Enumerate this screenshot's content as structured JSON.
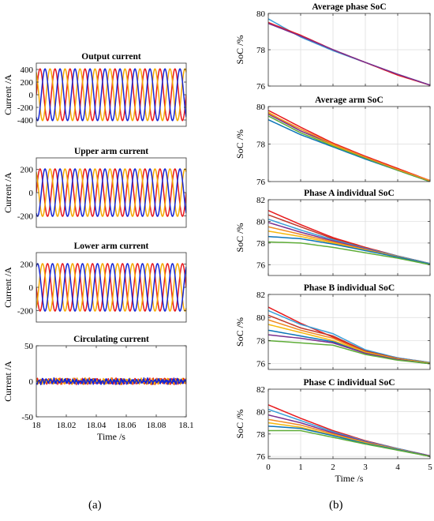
{
  "captions": {
    "a": "(a)",
    "b": "(b)"
  },
  "colors": {
    "phase_a": "#e8191c",
    "phase_b": "#f5a800",
    "phase_c": "#1524d4",
    "soc_palette": [
      "#e8191c",
      "#d8522a",
      "#7a2f8f",
      "#0b74b8",
      "#3a9fd8",
      "#f08a24",
      "#f5b80c",
      "#5fad38",
      "#c0392b"
    ]
  },
  "chart_data": [
    {
      "id": "output-current",
      "type": "line",
      "title": "Output current",
      "xlabel": "",
      "ylabel": "Current /A",
      "xlim": [
        18,
        18.1
      ],
      "ylim": [
        -500,
        500
      ],
      "yticks": [
        -400,
        -200,
        0,
        200,
        400
      ],
      "show_x_ticklabels": false,
      "grid": false,
      "legend": "none",
      "waveform": {
        "kind": "sine3",
        "amplitude": 410,
        "frequency_hz": 100,
        "offset": 0
      },
      "series": [
        {
          "color": "#e8191c",
          "phase_deg": 0
        },
        {
          "color": "#f5a800",
          "phase_deg": 120
        },
        {
          "color": "#1524d4",
          "phase_deg": 240
        }
      ]
    },
    {
      "id": "upper-arm-current",
      "type": "line",
      "title": "Upper arm current",
      "xlabel": "",
      "ylabel": "Current /A",
      "xlim": [
        18,
        18.1
      ],
      "ylim": [
        -300,
        300
      ],
      "yticks": [
        -200,
        0,
        200
      ],
      "show_x_ticklabels": false,
      "grid": false,
      "legend": "none",
      "waveform": {
        "kind": "sine3",
        "amplitude": 205,
        "frequency_hz": 100,
        "offset": 0
      },
      "series": [
        {
          "color": "#e8191c",
          "phase_deg": 0
        },
        {
          "color": "#f5a800",
          "phase_deg": 120
        },
        {
          "color": "#1524d4",
          "phase_deg": 240
        }
      ]
    },
    {
      "id": "lower-arm-current",
      "type": "line",
      "title": "Lower arm current",
      "xlabel": "",
      "ylabel": "Current /A",
      "xlim": [
        18,
        18.1
      ],
      "ylim": [
        -300,
        300
      ],
      "yticks": [
        -200,
        0,
        200
      ],
      "show_x_ticklabels": false,
      "grid": false,
      "legend": "none",
      "waveform": {
        "kind": "sine3",
        "amplitude": 205,
        "frequency_hz": 100,
        "offset": 0
      },
      "series": [
        {
          "color": "#e8191c",
          "phase_deg": 180
        },
        {
          "color": "#f5a800",
          "phase_deg": 300
        },
        {
          "color": "#1524d4",
          "phase_deg": 60
        }
      ]
    },
    {
      "id": "circulating-current",
      "type": "line",
      "title": "Circulating current",
      "xlabel": "Time /s",
      "ylabel": "Current /A",
      "xlim": [
        18,
        18.1
      ],
      "ylim": [
        -50,
        50
      ],
      "yticks": [
        -50,
        0,
        50
      ],
      "xticks": [
        18,
        18.02,
        18.04,
        18.06,
        18.08,
        18.1
      ],
      "show_x_ticklabels": true,
      "grid": false,
      "legend": "none",
      "waveform": {
        "kind": "noise",
        "amplitude": 4,
        "frequency_hz": 400,
        "offset": 0
      },
      "series": [
        {
          "color": "#e8191c",
          "phase_deg": 0
        },
        {
          "color": "#f5a800",
          "phase_deg": 100
        },
        {
          "color": "#1524d4",
          "phase_deg": 200
        }
      ]
    },
    {
      "id": "average-phase-soc",
      "type": "line",
      "title": "Average phase SoC",
      "xlabel": "",
      "ylabel": "SoC /%",
      "xlim": [
        0,
        5
      ],
      "ylim": [
        76,
        80
      ],
      "yticks": [
        76,
        78,
        80
      ],
      "xticks": [
        0,
        1,
        2,
        3,
        4,
        5
      ],
      "show_x_ticklabels": false,
      "grid": true,
      "legend": "none",
      "series": [
        {
          "color": "#3a9fd8",
          "x": [
            0,
            1,
            2,
            3,
            4,
            5
          ],
          "y": [
            79.7,
            78.7,
            77.95,
            77.3,
            76.65,
            76.05
          ]
        },
        {
          "color": "#e8191c",
          "x": [
            0,
            1,
            2,
            3,
            4,
            5
          ],
          "y": [
            79.5,
            78.8,
            78.0,
            77.3,
            76.6,
            76.05
          ]
        },
        {
          "color": "#7a2f8f",
          "x": [
            0,
            1,
            2,
            3,
            4,
            5
          ],
          "y": [
            79.45,
            78.75,
            78.0,
            77.3,
            76.65,
            76.05
          ]
        }
      ]
    },
    {
      "id": "average-arm-soc",
      "type": "line",
      "title": "Average arm SoC",
      "xlabel": "",
      "ylabel": "SoC /%",
      "xlim": [
        0,
        5
      ],
      "ylim": [
        76,
        80
      ],
      "yticks": [
        76,
        78,
        80
      ],
      "xticks": [
        0,
        1,
        2,
        3,
        4,
        5
      ],
      "show_x_ticklabels": false,
      "grid": true,
      "legend": "none",
      "series": [
        {
          "color": "#0b74b8",
          "x": [
            0,
            1,
            2,
            3,
            4,
            5
          ],
          "y": [
            79.3,
            78.5,
            77.85,
            77.2,
            76.6,
            76.0
          ]
        },
        {
          "color": "#5fad38",
          "x": [
            0,
            1,
            2,
            3,
            4,
            5
          ],
          "y": [
            79.5,
            78.6,
            77.9,
            77.25,
            76.6,
            76.0
          ]
        },
        {
          "color": "#f5b80c",
          "x": [
            0,
            1,
            2,
            3,
            4,
            5
          ],
          "y": [
            79.7,
            78.7,
            77.95,
            77.3,
            76.65,
            76.05
          ]
        },
        {
          "color": "#7a2f8f",
          "x": [
            0,
            1,
            2,
            3,
            4,
            5
          ],
          "y": [
            79.6,
            78.7,
            78.0,
            77.3,
            76.65,
            76.05
          ]
        },
        {
          "color": "#e8191c",
          "x": [
            0,
            1,
            2,
            3,
            4,
            5
          ],
          "y": [
            79.8,
            78.9,
            78.05,
            77.35,
            76.7,
            76.05
          ]
        },
        {
          "color": "#f08a24",
          "x": [
            0,
            1,
            2,
            3,
            4,
            5
          ],
          "y": [
            79.65,
            78.8,
            78.0,
            77.3,
            76.65,
            76.05
          ]
        }
      ]
    },
    {
      "id": "phase-a-individual-soc",
      "type": "line",
      "title": "Phase A individual SoC",
      "xlabel": "",
      "ylabel": "SoC /%",
      "xlim": [
        0,
        5
      ],
      "ylim": [
        75,
        82
      ],
      "yticks": [
        76,
        78,
        80,
        82
      ],
      "xticks": [
        0,
        1,
        2,
        3,
        4,
        5
      ],
      "show_x_ticklabels": false,
      "grid": true,
      "legend": "none",
      "series": [
        {
          "color": "#e8191c",
          "x": [
            0,
            1,
            2,
            3,
            4,
            5
          ],
          "y": [
            81.0,
            79.7,
            78.5,
            77.6,
            76.8,
            76.1
          ]
        },
        {
          "color": "#c0392b",
          "x": [
            0,
            1,
            2,
            3,
            4,
            5
          ],
          "y": [
            80.6,
            79.5,
            78.4,
            77.55,
            76.8,
            76.1
          ]
        },
        {
          "color": "#3a9fd8",
          "x": [
            0,
            1,
            2,
            3,
            4,
            5
          ],
          "y": [
            80.2,
            79.2,
            78.3,
            77.5,
            76.8,
            76.1
          ]
        },
        {
          "color": "#7a2f8f",
          "x": [
            0,
            1,
            2,
            3,
            4,
            5
          ],
          "y": [
            79.9,
            79.0,
            78.2,
            77.45,
            76.75,
            76.05
          ]
        },
        {
          "color": "#f08a24",
          "x": [
            0,
            1,
            2,
            3,
            4,
            5
          ],
          "y": [
            79.5,
            78.8,
            78.1,
            77.4,
            76.75,
            76.05
          ]
        },
        {
          "color": "#f5b80c",
          "x": [
            0,
            1,
            2,
            3,
            4,
            5
          ],
          "y": [
            79.1,
            78.6,
            78.0,
            77.35,
            76.7,
            76.05
          ]
        },
        {
          "color": "#0b74b8",
          "x": [
            0,
            1,
            2,
            3,
            4,
            5
          ],
          "y": [
            78.6,
            78.4,
            77.9,
            77.3,
            76.7,
            76.05
          ]
        },
        {
          "color": "#5fad38",
          "x": [
            0,
            1,
            2,
            3,
            4,
            5
          ],
          "y": [
            78.1,
            78.0,
            77.6,
            77.1,
            76.6,
            76.0
          ]
        }
      ]
    },
    {
      "id": "phase-b-individual-soc",
      "type": "line",
      "title": "Phase B individual SoC",
      "xlabel": "",
      "ylabel": "SoC /%",
      "xlim": [
        0,
        5
      ],
      "ylim": [
        75.5,
        82
      ],
      "yticks": [
        76,
        78,
        80,
        82
      ],
      "xticks": [
        0,
        1,
        2,
        3,
        4,
        5
      ],
      "show_x_ticklabels": false,
      "grid": true,
      "legend": "none",
      "series": [
        {
          "color": "#e8191c",
          "x": [
            0,
            1,
            2,
            3,
            4,
            5
          ],
          "y": [
            80.9,
            79.5,
            78.3,
            77.1,
            76.5,
            76.1
          ]
        },
        {
          "color": "#3a9fd8",
          "x": [
            0,
            1,
            2,
            3,
            4,
            5
          ],
          "y": [
            80.6,
            79.4,
            78.6,
            77.2,
            76.5,
            76.1
          ]
        },
        {
          "color": "#c0392b",
          "x": [
            0,
            1,
            2,
            3,
            4,
            5
          ],
          "y": [
            80.2,
            79.1,
            78.4,
            77.1,
            76.45,
            76.05
          ]
        },
        {
          "color": "#f08a24",
          "x": [
            0,
            1,
            2,
            3,
            4,
            5
          ],
          "y": [
            79.8,
            78.9,
            78.2,
            77.0,
            76.4,
            76.05
          ]
        },
        {
          "color": "#f5b80c",
          "x": [
            0,
            1,
            2,
            3,
            4,
            5
          ],
          "y": [
            79.4,
            78.7,
            78.0,
            77.0,
            76.4,
            76.05
          ]
        },
        {
          "color": "#0b74b8",
          "x": [
            0,
            1,
            2,
            3,
            4,
            5
          ],
          "y": [
            78.9,
            78.4,
            77.9,
            76.9,
            76.35,
            76.0
          ]
        },
        {
          "color": "#7a2f8f",
          "x": [
            0,
            1,
            2,
            3,
            4,
            5
          ],
          "y": [
            78.5,
            78.2,
            77.8,
            76.9,
            76.35,
            76.0
          ]
        },
        {
          "color": "#5fad38",
          "x": [
            0,
            1,
            2,
            3,
            4,
            5
          ],
          "y": [
            78.0,
            77.8,
            77.6,
            76.8,
            76.3,
            76.0
          ]
        }
      ]
    },
    {
      "id": "phase-c-individual-soc",
      "type": "line",
      "title": "Phase C individual SoC",
      "xlabel": "Time /s",
      "ylabel": "SoC /%",
      "xlim": [
        0,
        5
      ],
      "ylim": [
        75.8,
        82
      ],
      "yticks": [
        76,
        78,
        80,
        82
      ],
      "xticks": [
        0,
        1,
        2,
        3,
        4,
        5
      ],
      "show_x_ticklabels": true,
      "grid": true,
      "legend": "none",
      "series": [
        {
          "color": "#e8191c",
          "x": [
            0,
            1,
            2,
            3,
            4,
            5
          ],
          "y": [
            80.6,
            79.4,
            78.3,
            77.4,
            76.7,
            76.05
          ]
        },
        {
          "color": "#3a9fd8",
          "x": [
            0,
            1,
            2,
            3,
            4,
            5
          ],
          "y": [
            80.2,
            79.2,
            78.2,
            77.35,
            76.7,
            76.05
          ]
        },
        {
          "color": "#7a2f8f",
          "x": [
            0,
            1,
            2,
            3,
            4,
            5
          ],
          "y": [
            79.7,
            79.0,
            78.1,
            77.3,
            76.65,
            76.05
          ]
        },
        {
          "color": "#f08a24",
          "x": [
            0,
            1,
            2,
            3,
            4,
            5
          ],
          "y": [
            79.3,
            78.8,
            78.0,
            77.25,
            76.65,
            76.0
          ]
        },
        {
          "color": "#f5b80c",
          "x": [
            0,
            1,
            2,
            3,
            4,
            5
          ],
          "y": [
            79.0,
            78.6,
            77.9,
            77.2,
            76.6,
            76.0
          ]
        },
        {
          "color": "#0b74b8",
          "x": [
            0,
            1,
            2,
            3,
            4,
            5
          ],
          "y": [
            78.7,
            78.5,
            77.85,
            77.15,
            76.6,
            76.0
          ]
        },
        {
          "color": "#5fad38",
          "x": [
            0,
            1,
            2,
            3,
            4,
            5
          ],
          "y": [
            78.3,
            78.3,
            77.7,
            77.1,
            76.55,
            76.0
          ]
        }
      ]
    }
  ]
}
